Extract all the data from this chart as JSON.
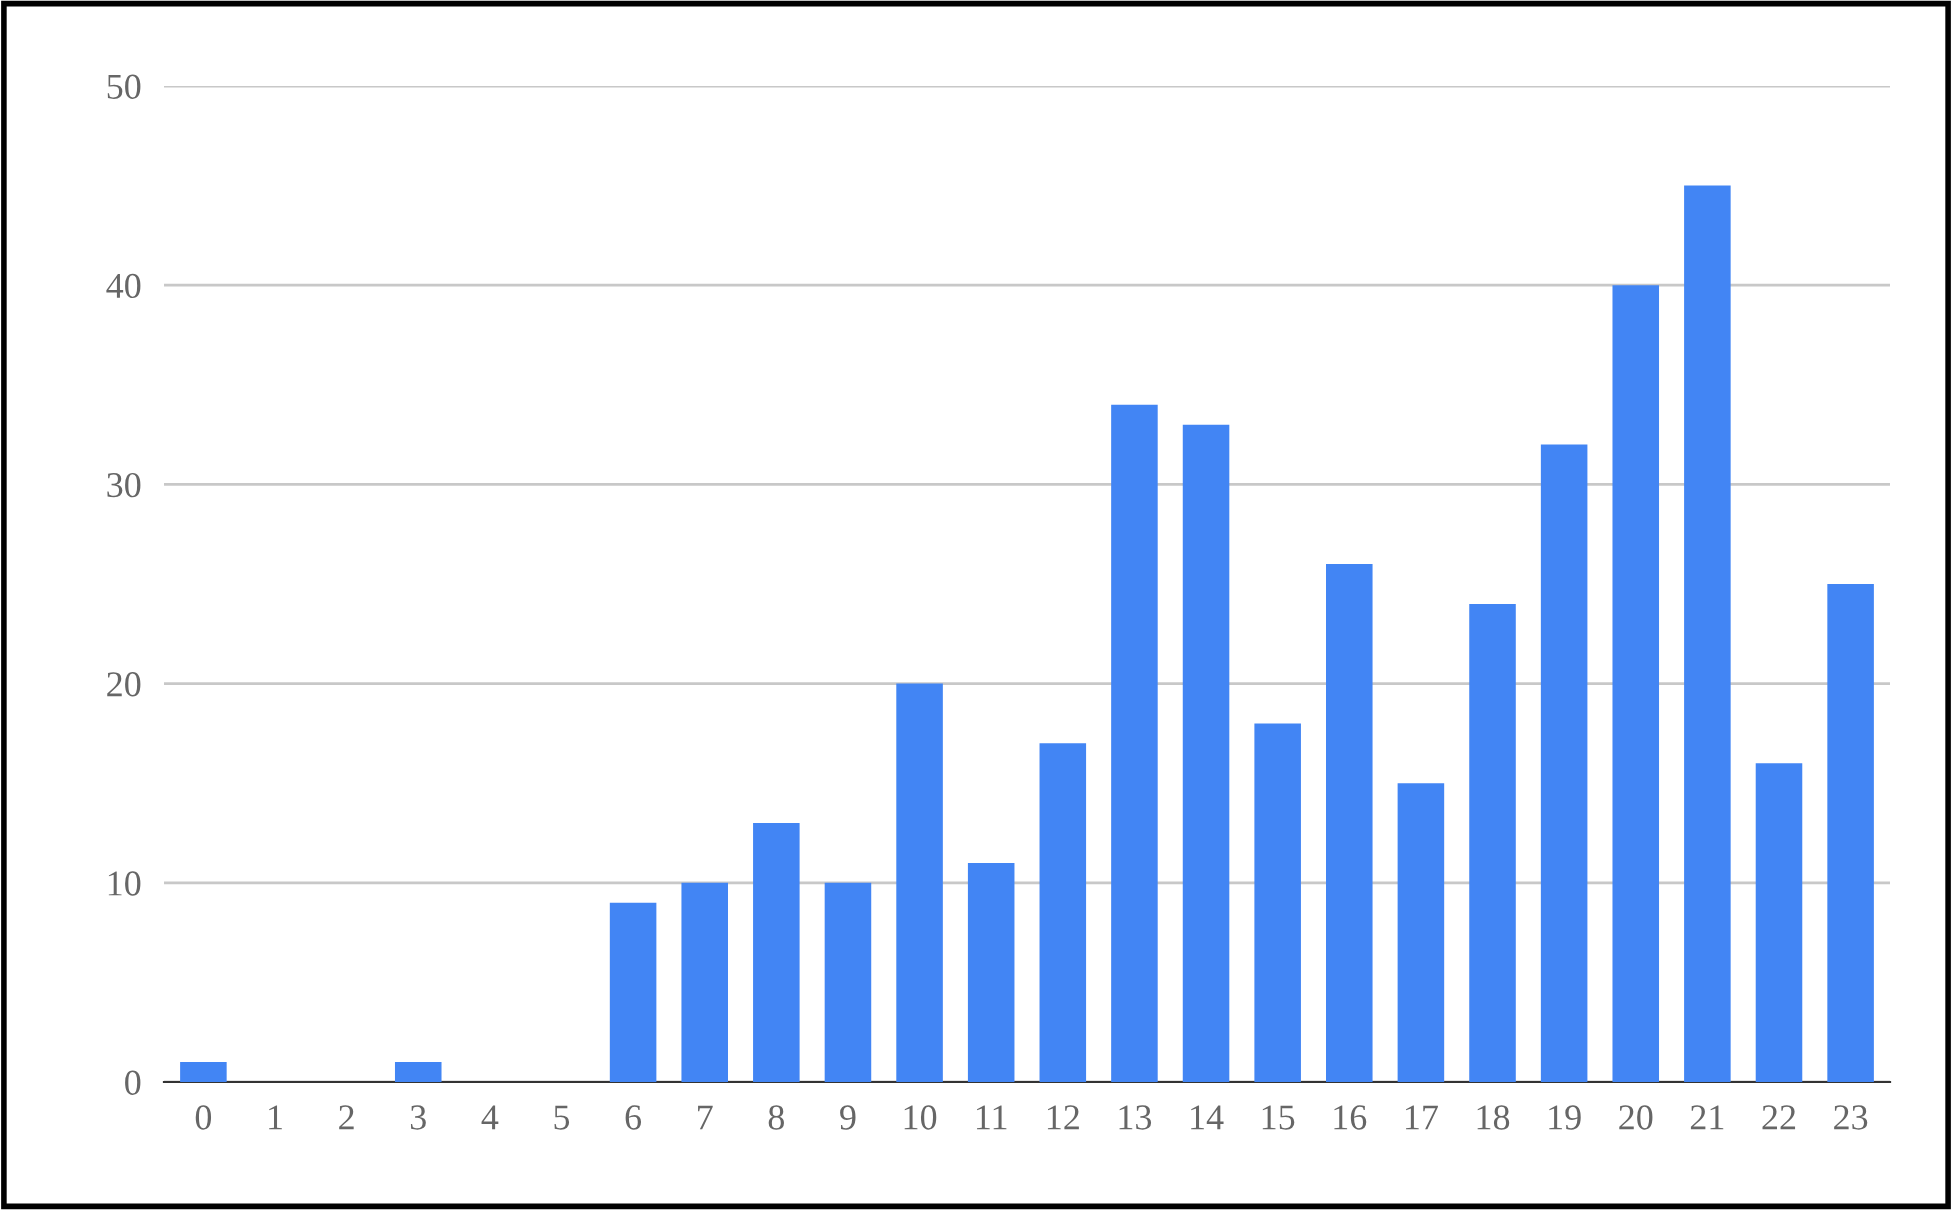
{
  "chart_data": {
    "type": "bar",
    "categories": [
      "0",
      "1",
      "2",
      "3",
      "4",
      "5",
      "6",
      "7",
      "8",
      "9",
      "10",
      "11",
      "12",
      "13",
      "14",
      "15",
      "16",
      "17",
      "18",
      "19",
      "20",
      "21",
      "22",
      "23"
    ],
    "values": [
      1,
      0,
      0,
      1,
      0,
      0,
      9,
      10,
      13,
      10,
      20,
      11,
      17,
      34,
      33,
      18,
      26,
      15,
      24,
      32,
      40,
      45,
      16,
      25
    ],
    "color": "#4285f4",
    "ylim": [
      0,
      50
    ],
    "yticks": [
      0,
      10,
      20,
      30,
      40,
      50
    ],
    "grid": "y",
    "legend": false
  }
}
